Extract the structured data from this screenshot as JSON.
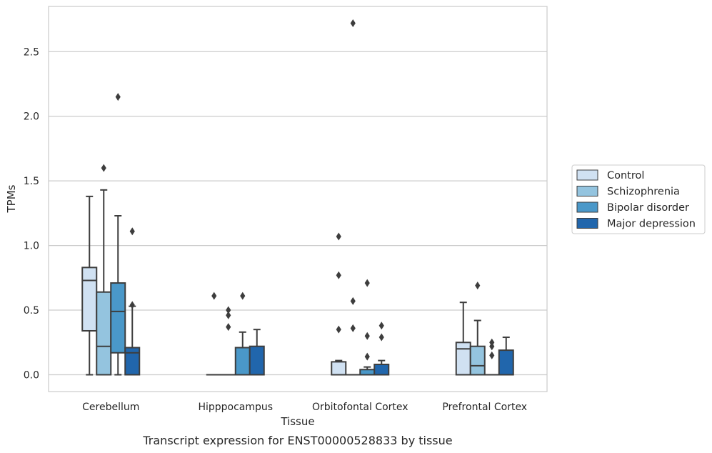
{
  "chart_data": {
    "type": "box",
    "title": "",
    "caption": "Transcript expression for ENST00000528833 by tissue",
    "xlabel": "Tissue",
    "ylabel": "TPMs",
    "ylim": [
      -0.13,
      2.85
    ],
    "yticks": [
      "0.0",
      "0.5",
      "1.0",
      "1.5",
      "2.0",
      "2.5"
    ],
    "ytick_values": [
      0.0,
      0.5,
      1.0,
      1.5,
      2.0,
      2.5
    ],
    "grid": true,
    "legend_position": "right",
    "categories": [
      "Cerebellum",
      "Hipppocampus",
      "Orbitofontal Cortex",
      "Prefrontal Cortex"
    ],
    "series": [
      {
        "name": "Control",
        "color": "#d0e1f2",
        "boxes": [
          {
            "q1": 0.34,
            "median": 0.73,
            "q3": 0.83,
            "whisker_low": 0.0,
            "whisker_high": 1.38,
            "outliers": []
          },
          {
            "q1": 0.0,
            "median": 0.0,
            "q3": 0.0,
            "whisker_low": 0.0,
            "whisker_high": 0.0,
            "outliers": [
              0.61
            ]
          },
          {
            "q1": 0.0,
            "median": 0.0,
            "q3": 0.1,
            "whisker_low": 0.0,
            "whisker_high": 0.11,
            "outliers": [
              1.07,
              0.77,
              0.35
            ]
          },
          {
            "q1": 0.0,
            "median": 0.2,
            "q3": 0.25,
            "whisker_low": 0.0,
            "whisker_high": 0.56,
            "outliers": []
          }
        ]
      },
      {
        "name": "Schizophrenia",
        "color": "#94c4df",
        "boxes": [
          {
            "q1": 0.0,
            "median": 0.22,
            "q3": 0.64,
            "whisker_low": 0.0,
            "whisker_high": 1.43,
            "outliers": [
              1.6
            ]
          },
          {
            "q1": 0.0,
            "median": 0.0,
            "q3": 0.0,
            "whisker_low": 0.0,
            "whisker_high": 0.0,
            "outliers": [
              0.5,
              0.46,
              0.37
            ]
          },
          {
            "q1": 0.0,
            "median": 0.0,
            "q3": 0.0,
            "whisker_low": 0.0,
            "whisker_high": 0.0,
            "outliers": [
              2.72,
              0.57,
              0.36
            ]
          },
          {
            "q1": 0.0,
            "median": 0.07,
            "q3": 0.22,
            "whisker_low": 0.0,
            "whisker_high": 0.42,
            "outliers": [
              0.69
            ]
          }
        ]
      },
      {
        "name": "Bipolar disorder",
        "color": "#4a98c9",
        "boxes": [
          {
            "q1": 0.17,
            "median": 0.49,
            "q3": 0.71,
            "whisker_low": 0.0,
            "whisker_high": 1.23,
            "outliers": [
              2.15
            ]
          },
          {
            "q1": 0.0,
            "median": 0.0,
            "q3": 0.21,
            "whisker_low": 0.0,
            "whisker_high": 0.33,
            "outliers": [
              0.61
            ]
          },
          {
            "q1": 0.0,
            "median": 0.0,
            "q3": 0.04,
            "whisker_low": 0.0,
            "whisker_high": 0.06,
            "outliers": [
              0.71,
              0.3,
              0.14
            ]
          },
          {
            "q1": 0.0,
            "median": 0.0,
            "q3": 0.0,
            "whisker_low": 0.0,
            "whisker_high": 0.0,
            "outliers": [
              0.25,
              0.22,
              0.15
            ]
          }
        ]
      },
      {
        "name": "Major depression",
        "color": "#2166ac",
        "boxes": [
          {
            "q1": 0.0,
            "median": 0.17,
            "q3": 0.21,
            "whisker_low": 0.0,
            "whisker_high": 0.53,
            "outliers": [
              1.11,
              0.54
            ]
          },
          {
            "q1": 0.0,
            "median": 0.0,
            "q3": 0.22,
            "whisker_low": 0.0,
            "whisker_high": 0.35,
            "outliers": []
          },
          {
            "q1": 0.0,
            "median": 0.0,
            "q3": 0.08,
            "whisker_low": 0.0,
            "whisker_high": 0.11,
            "outliers": [
              0.38,
              0.29
            ]
          },
          {
            "q1": 0.0,
            "median": 0.0,
            "q3": 0.19,
            "whisker_low": 0.0,
            "whisker_high": 0.29,
            "outliers": []
          }
        ]
      }
    ]
  }
}
